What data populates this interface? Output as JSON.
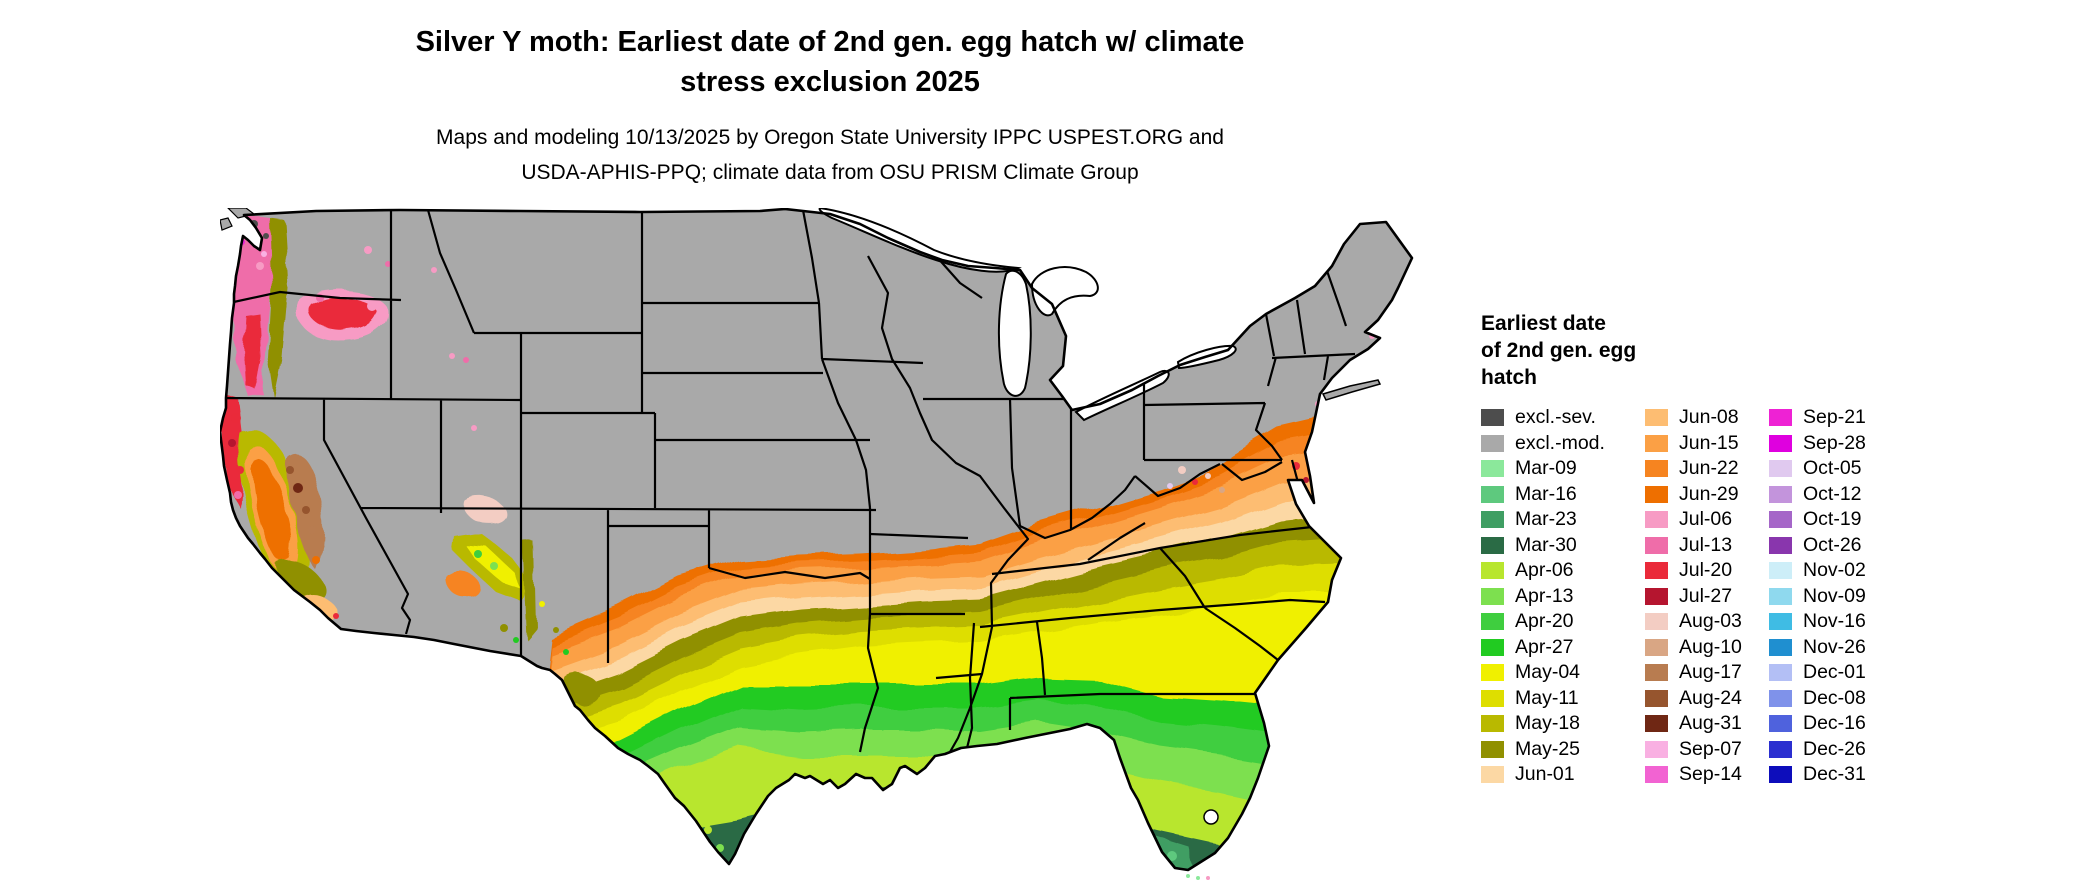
{
  "title": {
    "line1": "Silver Y moth: Earliest date of 2nd gen. egg hatch w/ climate",
    "line2": "stress exclusion 2025"
  },
  "subtitle": {
    "line1": "Maps and modeling 10/13/2025 by Oregon State University IPPC USPEST.ORG and",
    "line2": "USDA-APHIS-PPQ; climate data from OSU PRISM Climate Group"
  },
  "legend": {
    "title_lines": [
      "Earliest date",
      "of 2nd gen. egg",
      "hatch"
    ],
    "columns": [
      [
        {
          "label": "excl.-sev.",
          "color": "#4d4d4d"
        },
        {
          "label": "excl.-mod.",
          "color": "#a9a9a9"
        },
        {
          "label": "Mar-09",
          "color": "#8be89b"
        },
        {
          "label": "Mar-16",
          "color": "#5ec97e"
        },
        {
          "label": "Mar-23",
          "color": "#3f9e63"
        },
        {
          "label": "Mar-30",
          "color": "#2a6b45"
        },
        {
          "label": "Apr-06",
          "color": "#b8e62e"
        },
        {
          "label": "Apr-13",
          "color": "#7de04f"
        },
        {
          "label": "Apr-20",
          "color": "#3fce3f"
        },
        {
          "label": "Apr-27",
          "color": "#21cb21"
        },
        {
          "label": "May-04",
          "color": "#f0f000"
        },
        {
          "label": "May-11",
          "color": "#dede00"
        },
        {
          "label": "May-18",
          "color": "#b9b900"
        },
        {
          "label": "May-25",
          "color": "#909000"
        },
        {
          "label": "Jun-01",
          "color": "#fcd8a4"
        }
      ],
      [
        {
          "label": "Jun-08",
          "color": "#fdbd72"
        },
        {
          "label": "Jun-15",
          "color": "#fba045"
        },
        {
          "label": "Jun-22",
          "color": "#f68420"
        },
        {
          "label": "Jun-29",
          "color": "#ee6f00"
        },
        {
          "label": "Jul-06",
          "color": "#f79bc4"
        },
        {
          "label": "Jul-13",
          "color": "#ef6da9"
        },
        {
          "label": "Jul-20",
          "color": "#ea2a3a"
        },
        {
          "label": "Jul-27",
          "color": "#b5152f"
        },
        {
          "label": "Aug-03",
          "color": "#f3cdc3"
        },
        {
          "label": "Aug-10",
          "color": "#d9a684"
        },
        {
          "label": "Aug-17",
          "color": "#b87c50"
        },
        {
          "label": "Aug-24",
          "color": "#96552e"
        },
        {
          "label": "Aug-31",
          "color": "#6f2714"
        },
        {
          "label": "Sep-07",
          "color": "#f9b0e2"
        },
        {
          "label": "Sep-14",
          "color": "#f263d2"
        }
      ],
      [
        {
          "label": "Sep-21",
          "color": "#ee22d4"
        },
        {
          "label": "Sep-28",
          "color": "#df00df"
        },
        {
          "label": "Oct-05",
          "color": "#e0c9ef"
        },
        {
          "label": "Oct-12",
          "color": "#c394dc"
        },
        {
          "label": "Oct-19",
          "color": "#a566c8"
        },
        {
          "label": "Oct-26",
          "color": "#8936ad"
        },
        {
          "label": "Nov-02",
          "color": "#cdeef8"
        },
        {
          "label": "Nov-09",
          "color": "#8fd9ee"
        },
        {
          "label": "Nov-16",
          "color": "#3fbce4"
        },
        {
          "label": "Nov-26",
          "color": "#1f8fd0"
        },
        {
          "label": "Dec-01",
          "color": "#b3bff5"
        },
        {
          "label": "Dec-08",
          "color": "#7f92ea"
        },
        {
          "label": "Dec-16",
          "color": "#4f62dd"
        },
        {
          "label": "Dec-26",
          "color": "#2b2fd0"
        },
        {
          "label": "Dec-31",
          "color": "#0d0dbb"
        }
      ]
    ]
  },
  "map": {
    "background_color": "#ffffff",
    "border_color": "#000000",
    "base_fill_label": "excl.-mod."
  }
}
